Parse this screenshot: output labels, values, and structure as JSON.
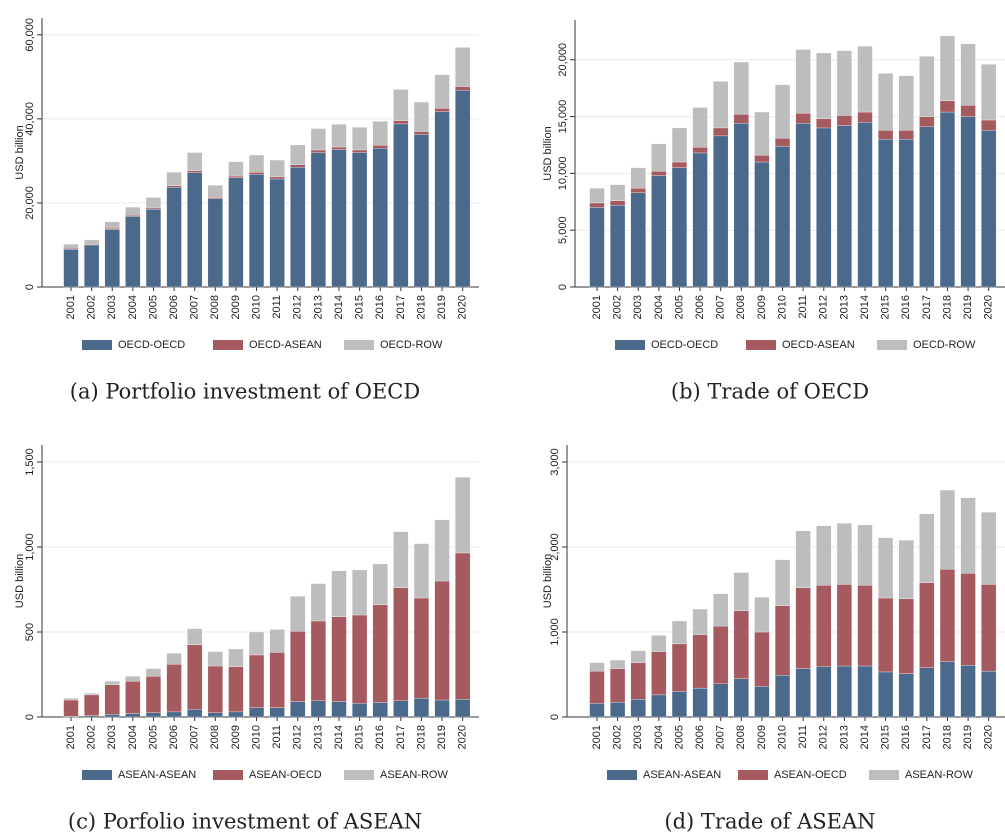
{
  "chart_data": [
    {
      "type": "bar",
      "stacked": true,
      "caption": "(a) Portfolio investment of OECD",
      "y_label": "USD billion",
      "categories": [
        "2001",
        "2002",
        "2003",
        "2004",
        "2005",
        "2006",
        "2007",
        "2008",
        "2009",
        "2010",
        "2011",
        "2012",
        "2013",
        "2014",
        "2015",
        "2016",
        "2017",
        "2018",
        "2019",
        "2020"
      ],
      "series": [
        {
          "name": "OECD-OECD",
          "color": "#4b6a8b",
          "values": [
            9000,
            10000,
            13700,
            16800,
            18500,
            23700,
            27200,
            21000,
            26000,
            26800,
            25700,
            28500,
            32000,
            32700,
            32000,
            33000,
            38800,
            36300,
            41700,
            46800
          ]
        },
        {
          "name": "OECD-ASEAN",
          "color": "#a55a5f",
          "values": [
            200,
            200,
            300,
            300,
            300,
            400,
            500,
            300,
            400,
            500,
            500,
            600,
            600,
            600,
            600,
            700,
            800,
            700,
            800,
            900
          ]
        },
        {
          "name": "OECD-ROW",
          "color": "#bdbdbd",
          "values": [
            1000,
            1000,
            1500,
            1900,
            2500,
            3200,
            4300,
            2900,
            3400,
            4100,
            4000,
            4700,
            5100,
            5400,
            5400,
            5700,
            7400,
            7000,
            8000,
            9300
          ]
        }
      ],
      "ylim": [
        0,
        64000
      ],
      "yticks": [
        0,
        {
          "value": 20000,
          "label": "20,000"
        },
        {
          "value": 40000,
          "label": "40,000"
        },
        {
          "value": 60000,
          "label": "60,000"
        }
      ],
      "grid": true,
      "legend": "bottom"
    },
    {
      "type": "bar",
      "stacked": true,
      "caption": "(b) Trade of OECD",
      "y_label": "USD billion",
      "categories": [
        "2001",
        "2002",
        "2003",
        "2004",
        "2005",
        "2006",
        "2007",
        "2008",
        "2009",
        "2010",
        "2011",
        "2012",
        "2013",
        "2014",
        "2015",
        "2016",
        "2017",
        "2018",
        "2019",
        "2020"
      ],
      "series": [
        {
          "name": "OECD-OECD",
          "color": "#4b6a8b",
          "values": [
            7000,
            7200,
            8300,
            9800,
            10500,
            11800,
            13300,
            14400,
            11000,
            12400,
            14400,
            14000,
            14200,
            14500,
            13000,
            13000,
            14100,
            15400,
            15000,
            13800
          ]
        },
        {
          "name": "OECD-ASEAN",
          "color": "#a55a5f",
          "values": [
            400,
            400,
            400,
            400,
            500,
            500,
            700,
            800,
            600,
            700,
            900,
            800,
            900,
            900,
            800,
            800,
            900,
            1000,
            1000,
            900
          ]
        },
        {
          "name": "OECD-ROW",
          "color": "#bdbdbd",
          "values": [
            1300,
            1400,
            1800,
            2400,
            3000,
            3500,
            4100,
            4600,
            3800,
            4700,
            5600,
            5800,
            5700,
            5800,
            5000,
            4800,
            5300,
            5700,
            5400,
            4900
          ]
        }
      ],
      "ylim": [
        0,
        23500
      ],
      "yticks": [
        0,
        {
          "value": 5000,
          "label": "5,000"
        },
        {
          "value": 10000,
          "label": "10,000"
        },
        {
          "value": 15000,
          "label": "15,000"
        },
        {
          "value": 20000,
          "label": "20,000"
        }
      ],
      "grid": true,
      "legend": "bottom"
    },
    {
      "type": "bar",
      "stacked": true,
      "caption": "(c) Porfolio investment of ASEAN",
      "y_label": "USD billion",
      "categories": [
        "2001",
        "2002",
        "2003",
        "2004",
        "2005",
        "2006",
        "2007",
        "2008",
        "2009",
        "2010",
        "2011",
        "2012",
        "2013",
        "2014",
        "2015",
        "2016",
        "2017",
        "2018",
        "2019",
        "2020"
      ],
      "series": [
        {
          "name": "ASEAN-ASEAN",
          "color": "#4b6a8b",
          "values": [
            5,
            8,
            15,
            20,
            25,
            30,
            45,
            25,
            30,
            55,
            55,
            90,
            95,
            90,
            80,
            85,
            95,
            110,
            100,
            105
          ]
        },
        {
          "name": "ASEAN-OECD",
          "color": "#a55a5f",
          "values": [
            95,
            122,
            175,
            190,
            215,
            280,
            380,
            275,
            265,
            310,
            325,
            415,
            470,
            500,
            520,
            575,
            665,
            590,
            700,
            860
          ]
        },
        {
          "name": "ASEAN-ROW",
          "color": "#bdbdbd",
          "values": [
            10,
            10,
            20,
            30,
            45,
            65,
            95,
            85,
            105,
            135,
            135,
            205,
            220,
            270,
            265,
            240,
            330,
            320,
            360,
            445
          ]
        }
      ],
      "ylim": [
        0,
        1600
      ],
      "yticks": [
        0,
        500,
        {
          "value": 1000,
          "label": "1,000"
        },
        {
          "value": 1500,
          "label": "1,500"
        }
      ],
      "grid": true,
      "legend": "bottom"
    },
    {
      "type": "bar",
      "stacked": true,
      "caption": "(d) Trade of ASEAN",
      "y_label": "USD billion",
      "categories": [
        "2001",
        "2002",
        "2003",
        "2004",
        "2005",
        "2006",
        "2007",
        "2008",
        "2009",
        "2010",
        "2011",
        "2012",
        "2013",
        "2014",
        "2015",
        "2016",
        "2017",
        "2018",
        "2019",
        "2020"
      ],
      "series": [
        {
          "name": "ASEAN-ASEAN",
          "color": "#4b6a8b",
          "values": [
            160,
            175,
            210,
            260,
            300,
            340,
            390,
            450,
            360,
            490,
            570,
            590,
            600,
            600,
            530,
            510,
            580,
            650,
            610,
            540
          ]
        },
        {
          "name": "ASEAN-OECD",
          "color": "#a55a5f",
          "values": [
            380,
            395,
            430,
            510,
            560,
            630,
            680,
            800,
            640,
            820,
            950,
            960,
            960,
            950,
            870,
            880,
            1000,
            1090,
            1080,
            1020
          ]
        },
        {
          "name": "ASEAN-ROW",
          "color": "#bdbdbd",
          "values": [
            100,
            100,
            140,
            190,
            270,
            300,
            380,
            450,
            410,
            540,
            670,
            700,
            720,
            710,
            710,
            690,
            810,
            930,
            890,
            850
          ]
        }
      ],
      "ylim": [
        0,
        3200
      ],
      "yticks": [
        0,
        {
          "value": 1000,
          "label": "1,000"
        },
        {
          "value": 2000,
          "label": "2,000"
        },
        {
          "value": 3000,
          "label": "3,000"
        }
      ],
      "grid": true,
      "legend": "bottom"
    }
  ]
}
